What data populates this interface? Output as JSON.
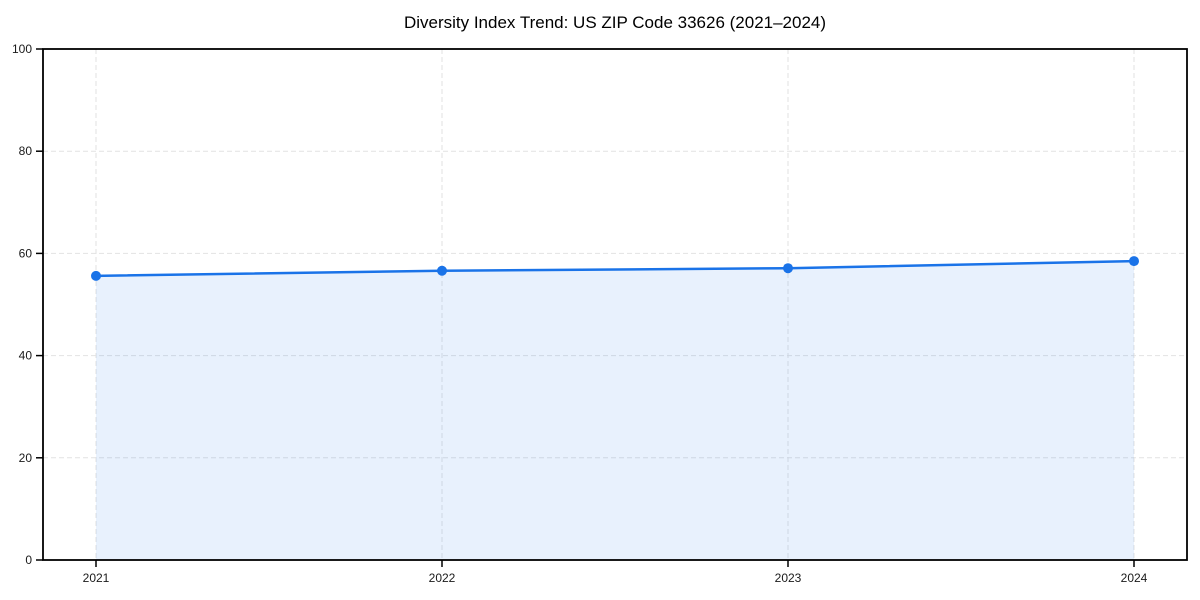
{
  "chart_data": {
    "type": "area",
    "title": "Diversity Index Trend: US ZIP Code 33626 (2021–2024)",
    "x": [
      "2021",
      "2022",
      "2023",
      "2024"
    ],
    "series": [
      {
        "name": "Diversity Index",
        "values": [
          55.6,
          56.6,
          57.1,
          58.5
        ]
      }
    ],
    "xlabel": "",
    "ylabel": "",
    "ylim": [
      0,
      100
    ],
    "yticks": [
      0,
      20,
      40,
      60,
      80,
      100
    ],
    "grid": "dashed",
    "legend": "none",
    "line_color": "#1a73e8",
    "marker_color": "#1a73e8",
    "fill_color": "#1a73e8",
    "fill_opacity": 0.1,
    "grid_color": "#e2e2e2",
    "spine_color": "#000000",
    "tick_label_color": "#1a1a1a"
  }
}
